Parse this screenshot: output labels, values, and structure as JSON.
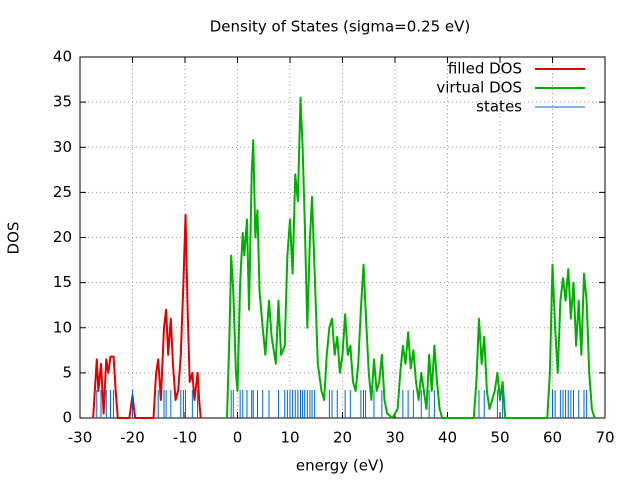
{
  "chart_data": {
    "type": "line",
    "title": "Density of States (sigma=0.25 eV)",
    "xlabel": "energy (eV)",
    "ylabel": "DOS",
    "xlim": [
      -30,
      70
    ],
    "xticks": [
      -30,
      -20,
      -10,
      0,
      10,
      20,
      30,
      40,
      50,
      60,
      70
    ],
    "ylim": [
      0,
      40
    ],
    "yticks": [
      0,
      5,
      10,
      15,
      20,
      25,
      30,
      35,
      40
    ],
    "grid": true,
    "legend": "upper right",
    "series": [
      {
        "name": "filled DOS",
        "color": "#e00000",
        "style": "lines",
        "x": [
          -27.5,
          -26.8,
          -26.5,
          -26,
          -25.5,
          -25,
          -24.6,
          -24.2,
          -23.6,
          -23.2,
          -22.8,
          -20.6,
          -20,
          -19.5,
          -16,
          -15.5,
          -15.1,
          -14.6,
          -14,
          -13.6,
          -13.2,
          -12.7,
          -12.3,
          -11.8,
          -11.3,
          -10.8,
          -10.3,
          -9.9,
          -9.5,
          -9.1,
          -8.6,
          -8.2,
          -7.6,
          -7.3,
          -7
        ],
        "values": [
          0,
          6.5,
          3,
          6,
          0.5,
          6.5,
          5,
          6.8,
          6.8,
          3,
          0,
          0,
          2.5,
          0,
          0,
          5,
          6.5,
          2,
          10,
          12,
          7,
          11,
          6,
          2,
          3,
          7,
          15,
          22.5,
          12,
          4,
          5,
          2,
          5,
          2,
          0
        ]
      },
      {
        "name": "virtual DOS",
        "color": "#00b000",
        "style": "lines",
        "x": [
          -2,
          -1.5,
          -1.2,
          -0.8,
          -0.3,
          0,
          0.5,
          1,
          1.3,
          1.8,
          2.2,
          2.7,
          3,
          3.4,
          3.8,
          4.2,
          4.8,
          5.3,
          6,
          6.5,
          7.3,
          7.8,
          8.3,
          9,
          9.5,
          10,
          10.5,
          11,
          11.5,
          12,
          12.4,
          12.8,
          13.3,
          13.8,
          14.2,
          14.7,
          15.3,
          16,
          16.5,
          17,
          17.5,
          18,
          18.5,
          19,
          19.5,
          20,
          20.5,
          21,
          21.5,
          22,
          22.5,
          23,
          23.5,
          24,
          24.4,
          25,
          25.5,
          26,
          26.5,
          27,
          27.5,
          28,
          28.5,
          29.5,
          30.5,
          31,
          31.5,
          32,
          32.5,
          33,
          33.5,
          34,
          34.5,
          35,
          35.5,
          36,
          36.5,
          37,
          37.5,
          38,
          38.5,
          39,
          45,
          45.5,
          46,
          46.5,
          47,
          47.5,
          48,
          49,
          49.5,
          50,
          50.5,
          51,
          59,
          59.5,
          60,
          60.5,
          61,
          61.5,
          62,
          62.5,
          63,
          63.5,
          64,
          64.5,
          65,
          65.5,
          66,
          66.5,
          67,
          67.5,
          68
        ],
        "values": [
          0,
          10,
          18,
          14,
          5,
          3,
          15,
          20.5,
          18,
          22,
          12,
          27,
          30.8,
          20,
          23,
          14,
          10,
          7,
          13,
          9,
          6,
          13,
          7,
          8,
          18,
          22,
          16,
          27,
          24,
          35.5,
          30,
          22,
          10,
          20,
          24.5,
          16,
          6,
          3,
          2,
          7,
          10,
          11,
          7,
          9,
          5,
          7,
          11.5,
          7,
          8,
          4,
          3,
          6,
          12,
          17,
          12,
          5,
          2,
          6.5,
          3,
          4,
          7,
          2,
          0.5,
          0,
          1,
          5,
          8,
          6,
          9.5,
          5.5,
          7.5,
          4,
          2,
          5,
          3,
          1,
          7,
          3,
          8,
          4,
          1,
          0,
          0,
          4,
          11,
          6,
          9,
          3,
          1,
          3,
          5,
          2,
          4,
          0,
          0,
          5,
          17,
          10,
          5,
          13,
          15.5,
          13,
          16.5,
          11,
          15,
          8,
          13,
          7,
          16,
          13,
          5,
          1,
          0
        ]
      },
      {
        "name": "states",
        "color": "#0066cc",
        "style": "impulses",
        "x": [
          -26.8,
          -26,
          -25,
          -24.2,
          -23.6,
          -20,
          -15.1,
          -14,
          -13.6,
          -12.7,
          -10.8,
          -10.3,
          -9.9,
          -8.6,
          -7.6,
          -1.2,
          -0.8,
          0.5,
          1,
          1.8,
          2.7,
          3,
          3.8,
          4.8,
          6,
          7.8,
          9,
          9.5,
          10,
          10.5,
          11,
          11.5,
          12,
          12.4,
          12.8,
          13.3,
          13.8,
          14.2,
          14.7,
          17.5,
          18,
          19,
          20.5,
          21.5,
          23.5,
          24,
          24.4,
          26,
          27.5,
          31.5,
          32.5,
          33.5,
          35,
          36.5,
          37.5,
          46,
          47,
          49.5,
          50.5,
          60,
          60.5,
          61.5,
          62,
          62.5,
          63,
          63.5,
          64,
          65,
          66,
          66.5
        ],
        "values": [
          3.1,
          3.1,
          3.1,
          3.1,
          3.1,
          3.1,
          3.1,
          3.1,
          3.1,
          3.1,
          3.1,
          3.1,
          3.1,
          3.1,
          3.1,
          3.1,
          3.1,
          3.1,
          3.1,
          3.1,
          3.1,
          3.1,
          3.1,
          3.1,
          3.1,
          3.1,
          3.1,
          3.1,
          3.1,
          3.1,
          3.1,
          3.1,
          3.1,
          3.1,
          3.1,
          3.1,
          3.1,
          3.1,
          3.1,
          3.1,
          3.1,
          3.1,
          3.1,
          3.1,
          3.1,
          3.1,
          3.1,
          3.1,
          3.1,
          3.1,
          3.1,
          3.1,
          3.1,
          3.1,
          3.1,
          3.1,
          3.1,
          3.1,
          3.1,
          3.1,
          3.1,
          3.1,
          3.1,
          3.1,
          3.1,
          3.1,
          3.1,
          3.1,
          3.1,
          3.1
        ]
      }
    ]
  }
}
